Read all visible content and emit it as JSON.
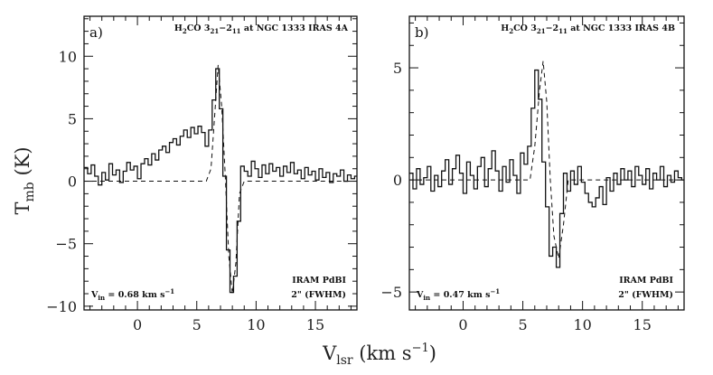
{
  "chart_data": [
    {
      "type": "line",
      "panel_label": "a)",
      "title": "H₂CO 3₂₁−2₁₁ at NGC 1333 IRAS 4A",
      "title_species": "H",
      "title_species_sub": "2",
      "title_species_tail": "CO 3",
      "title_upper_sub": "21",
      "title_dash": "−2",
      "title_lower_sub": "11",
      "title_source": " at NGC 1333 IRAS 4A",
      "vin_prefix": "V",
      "vin_sub": "in",
      "vin_value": " = 0.68 km s",
      "vin_exp": "−1",
      "telescope": "IRAM PdBI",
      "beam": "2\" (FWHM)",
      "xlim": [
        -4.5,
        18.5
      ],
      "ylim": [
        -10.3,
        13.2
      ],
      "xticks": [
        0,
        5,
        10,
        15
      ],
      "xticklabels": [
        "0",
        "5",
        "10",
        "15"
      ],
      "yticks": [
        -10,
        -5,
        0,
        5,
        10
      ],
      "yticklabels": [
        "−10",
        "−5",
        "0",
        "5",
        "10"
      ],
      "series": [
        {
          "name": "observed spectrum",
          "style": "step",
          "x": [
            -4.5,
            -4.2,
            -3.9,
            -3.6,
            -3.3,
            -3.0,
            -2.7,
            -2.4,
            -2.1,
            -1.8,
            -1.5,
            -1.2,
            -0.9,
            -0.6,
            -0.3,
            0.0,
            0.3,
            0.6,
            0.9,
            1.2,
            1.5,
            1.8,
            2.1,
            2.4,
            2.7,
            3.0,
            3.3,
            3.6,
            3.9,
            4.2,
            4.5,
            4.8,
            5.1,
            5.4,
            5.7,
            6.0,
            6.3,
            6.6,
            6.9,
            7.2,
            7.5,
            7.8,
            8.1,
            8.4,
            8.7,
            9.0,
            9.3,
            9.6,
            9.9,
            10.2,
            10.5,
            10.8,
            11.1,
            11.4,
            11.7,
            12.0,
            12.3,
            12.6,
            12.9,
            13.2,
            13.5,
            13.8,
            14.1,
            14.4,
            14.7,
            15.0,
            15.3,
            15.6,
            15.9,
            16.2,
            16.5,
            16.8,
            17.1,
            17.4,
            17.7,
            18.0,
            18.3
          ],
          "y": [
            1.1,
            0.6,
            1.3,
            0.4,
            -0.3,
            0.7,
            0.1,
            1.4,
            0.5,
            0.9,
            -0.1,
            0.8,
            1.5,
            0.9,
            1.2,
            0.2,
            1.4,
            1.8,
            1.3,
            2.2,
            1.7,
            2.5,
            2.8,
            2.3,
            3.1,
            3.4,
            2.9,
            3.6,
            4.1,
            3.5,
            4.3,
            3.8,
            4.4,
            3.9,
            2.8,
            4.1,
            6.5,
            9.0,
            5.8,
            0.4,
            -5.5,
            -8.9,
            -7.6,
            -3.2,
            1.2,
            0.8,
            0.4,
            1.6,
            1.0,
            0.3,
            1.3,
            0.6,
            1.4,
            0.8,
            1.1,
            0.4,
            1.2,
            0.7,
            1.5,
            0.6,
            0.9,
            0.2,
            1.1,
            0.5,
            0.8,
            0.1,
            1.0,
            0.3,
            0.7,
            -0.1,
            0.6,
            0.4,
            0.9,
            0.0,
            0.5,
            0.2,
            0.4
          ]
        },
        {
          "name": "model fit",
          "style": "dashed",
          "x": [
            -4.5,
            5.8,
            6.2,
            6.6,
            6.8,
            7.1,
            7.4,
            7.7,
            8.0,
            8.3,
            8.6,
            9.0,
            18.5
          ],
          "y": [
            0,
            0,
            1.0,
            6.5,
            9.3,
            6.0,
            0.5,
            -6.0,
            -9.0,
            -6.5,
            -1.0,
            0,
            0
          ]
        }
      ]
    },
    {
      "type": "line",
      "panel_label": "b)",
      "title": "H₂CO 3₂₁−2₁₁ at NGC 1333 IRAS 4B",
      "title_species": "H",
      "title_species_sub": "2",
      "title_species_tail": "CO 3",
      "title_upper_sub": "21",
      "title_dash": "−2",
      "title_lower_sub": "11",
      "title_source": " at NGC 1333 IRAS 4B",
      "vin_prefix": "V",
      "vin_sub": "in",
      "vin_value": " = 0.47 km s",
      "vin_exp": "−1",
      "telescope": "IRAM PdBI",
      "beam": "2\" (FWHM)",
      "xlim": [
        -4.5,
        18.5
      ],
      "ylim": [
        -5.8,
        7.3
      ],
      "xticks": [
        0,
        5,
        10,
        15
      ],
      "xticklabels": [
        "0",
        "5",
        "10",
        "15"
      ],
      "yticks": [
        -5,
        0,
        5
      ],
      "yticklabels": [
        "−5",
        "0",
        "5"
      ],
      "series": [
        {
          "name": "observed spectrum",
          "style": "step",
          "x": [
            -4.5,
            -4.2,
            -3.9,
            -3.6,
            -3.3,
            -3.0,
            -2.7,
            -2.4,
            -2.1,
            -1.8,
            -1.5,
            -1.2,
            -0.9,
            -0.6,
            -0.3,
            0.0,
            0.3,
            0.6,
            0.9,
            1.2,
            1.5,
            1.8,
            2.1,
            2.4,
            2.7,
            3.0,
            3.3,
            3.6,
            3.9,
            4.2,
            4.5,
            4.8,
            5.1,
            5.4,
            5.7,
            6.0,
            6.3,
            6.6,
            6.9,
            7.2,
            7.5,
            7.8,
            8.1,
            8.4,
            8.7,
            9.0,
            9.3,
            9.6,
            9.9,
            10.2,
            10.5,
            10.8,
            11.1,
            11.4,
            11.7,
            12.0,
            12.3,
            12.6,
            12.9,
            13.2,
            13.5,
            13.8,
            14.1,
            14.4,
            14.7,
            15.0,
            15.3,
            15.6,
            15.9,
            16.2,
            16.5,
            16.8,
            17.1,
            17.4,
            17.7,
            18.0,
            18.3
          ],
          "y": [
            0.3,
            -0.4,
            0.5,
            -0.2,
            0.1,
            0.6,
            -0.5,
            0.2,
            -0.3,
            0.4,
            0.9,
            -0.2,
            0.5,
            1.1,
            0.3,
            -0.6,
            0.8,
            0.2,
            -0.4,
            0.6,
            1.0,
            -0.3,
            0.5,
            1.3,
            0.4,
            -0.5,
            0.6,
            -0.1,
            0.9,
            0.2,
            -0.6,
            1.2,
            0.7,
            1.5,
            3.2,
            4.9,
            3.6,
            0.8,
            -1.2,
            -3.4,
            -3.0,
            -3.9,
            -1.5,
            0.3,
            -0.5,
            0.4,
            -0.2,
            0.6,
            -0.1,
            -0.6,
            -1.0,
            -1.2,
            -0.8,
            -0.3,
            -1.1,
            0.1,
            -0.5,
            0.3,
            -0.2,
            0.5,
            0.0,
            0.4,
            -0.3,
            0.6,
            0.2,
            -0.2,
            0.5,
            -0.4,
            0.3,
            0.0,
            0.6,
            -0.3,
            0.2,
            -0.1,
            0.4,
            0.1,
            0.0
          ]
        },
        {
          "name": "model fit",
          "style": "dashed",
          "x": [
            -4.5,
            5.6,
            6.0,
            6.4,
            6.7,
            7.0,
            7.3,
            7.6,
            8.0,
            8.4,
            8.8,
            18.5
          ],
          "y": [
            0,
            0,
            1.5,
            4.0,
            5.3,
            3.5,
            0.0,
            -2.5,
            -3.5,
            -2.0,
            0,
            0
          ]
        }
      ]
    }
  ],
  "axes": {
    "ylabel_main": "T",
    "ylabel_sub": "mb",
    "ylabel_unit": " (K)",
    "xlabel_main": "V",
    "xlabel_sub": "lsr",
    "xlabel_unit": " (km s",
    "xlabel_exp": "−1",
    "xlabel_close": ")"
  }
}
